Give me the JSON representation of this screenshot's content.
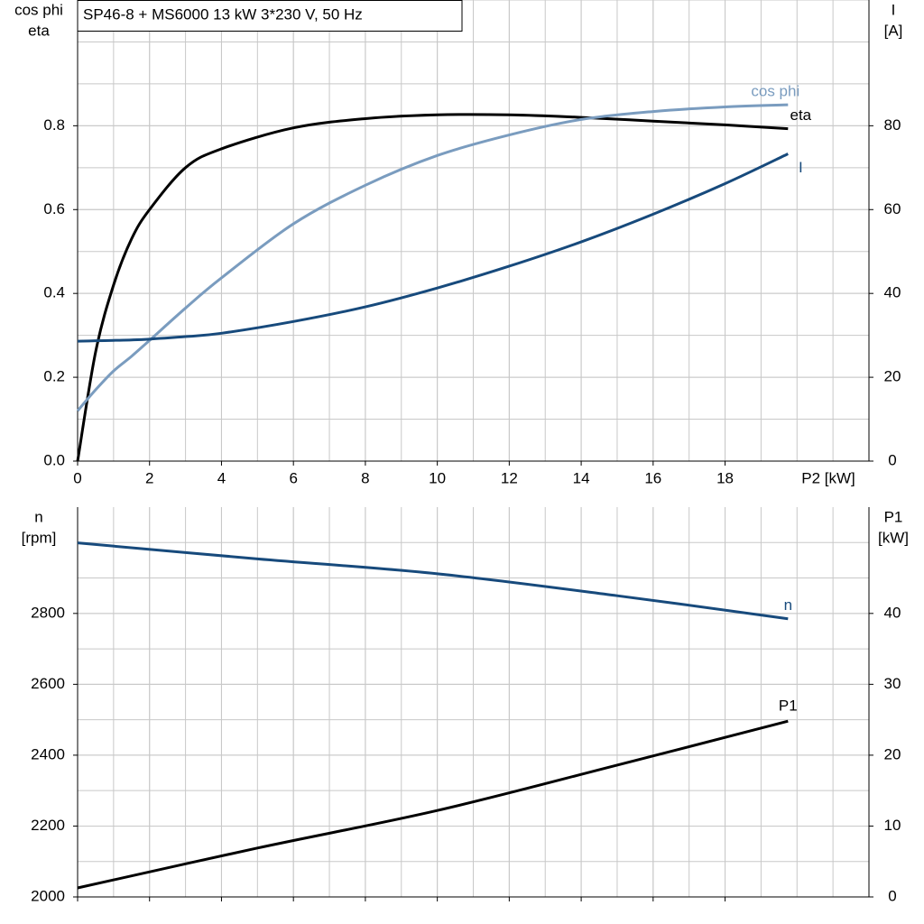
{
  "chart_data": [
    {
      "type": "line",
      "title": "SP46-8 + MS6000   13 kW   3*230 V, 50 Hz",
      "ylabel": [
        "cos phi",
        "eta"
      ],
      "y2label": [
        "I",
        "[A]"
      ],
      "xlabel": "P2 [kW]",
      "x": [
        0,
        0.5,
        1,
        1.5,
        2,
        3,
        4,
        6,
        8,
        10,
        12,
        14,
        16,
        18,
        19.75
      ],
      "xlim": [
        0,
        22
      ],
      "xticks": [
        0,
        2,
        4,
        6,
        8,
        10,
        12,
        14,
        16,
        18
      ],
      "ylim": [
        0,
        1.1
      ],
      "yticks": [
        {
          "value": 0,
          "label": "0.0"
        },
        0.2,
        0.4,
        0.6,
        0.8
      ],
      "y2lim": [
        0,
        110
      ],
      "y2ticks": [
        0,
        20,
        40,
        60,
        80
      ],
      "grid": true,
      "series": [
        {
          "name": "eta",
          "color": "#000000",
          "values": [
            0,
            0.26,
            0.42,
            0.53,
            0.6,
            0.7,
            0.745,
            0.795,
            0.817,
            0.826,
            0.826,
            0.82,
            0.811,
            0.802,
            0.793
          ]
        },
        {
          "name": "cos phi",
          "color": "#7a9cbf",
          "values": [
            0.12,
            0.17,
            0.215,
            0.25,
            0.288,
            0.365,
            0.437,
            0.566,
            0.658,
            0.729,
            0.778,
            0.815,
            0.834,
            0.845,
            0.85
          ]
        },
        {
          "name": "I",
          "color": "#174a7c",
          "axis": "y2",
          "values": [
            28.6,
            28.7,
            28.8,
            28.9,
            29.1,
            29.7,
            30.5,
            33.3,
            36.8,
            41.3,
            46.5,
            52.3,
            58.9,
            66.2,
            73.3
          ]
        }
      ]
    },
    {
      "type": "line",
      "ylabel": [
        "n",
        "[rpm]"
      ],
      "y2label": [
        "P1",
        "[kW]"
      ],
      "x": [
        0,
        5,
        10,
        15,
        19.75
      ],
      "xlim": [
        0,
        22
      ],
      "ylim": [
        2000,
        3100
      ],
      "yticks": [
        2000,
        2200,
        2400,
        2600,
        2800
      ],
      "y2lim": [
        0,
        55
      ],
      "y2ticks": [
        0,
        10,
        20,
        30,
        40
      ],
      "grid": true,
      "series": [
        {
          "name": "n",
          "color": "#174a7c",
          "values": [
            2999,
            2954,
            2912,
            2850,
            2785
          ]
        },
        {
          "name": "P1",
          "color": "#000000",
          "axis": "y2",
          "values": [
            1.27,
            6.9,
            12.2,
            18.6,
            24.8
          ]
        }
      ]
    }
  ]
}
